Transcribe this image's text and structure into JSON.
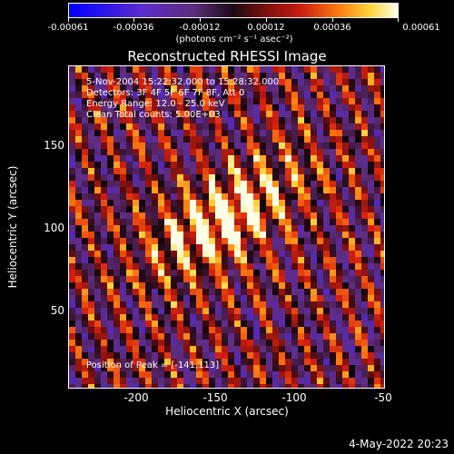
{
  "colorbar": {
    "ticks": [
      "-0.00061",
      "-0.00036",
      "-0.00012",
      "0.00012",
      "0.00036",
      "0.00061"
    ],
    "unit": "(photons cm⁻² s⁻¹ asec⁻²)",
    "colors": [
      "#0000ff",
      "#5c2e7a",
      "#000000",
      "#c81a10",
      "#ff7a10",
      "#fffff0"
    ]
  },
  "title": "Reconstructed RHESSI Image",
  "info": {
    "line1": "5-Nov-2004 15:22:32.000 to 15:28:32.000",
    "line2": "Detectors: 3F 4F 5F 6F 7F 8F, Att 0",
    "line3": "Energy Range: 12.0 - 25.0 keV",
    "line4": "Clean    Total counts: 5.00E+03"
  },
  "peak": "Position of Peak = [-141,113]",
  "axes": {
    "xlabel": "Heliocentric X (arcsec)",
    "ylabel": "Heliocentric Y (arcsec)",
    "xticks": [
      "-200",
      "-150",
      "-100",
      "-50"
    ],
    "yticks": [
      "50",
      "100",
      "150"
    ],
    "xlim": [
      -240,
      -50
    ],
    "ylim": [
      0,
      195
    ]
  },
  "timestamp": "4-May-2022 20:23"
}
